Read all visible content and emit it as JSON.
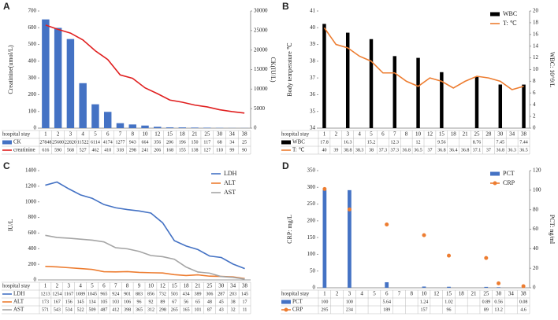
{
  "chart_data": [
    {
      "type": "combo",
      "label": "A",
      "x_label": "hospital stay",
      "ylabel": "Creatinine(umol/L)",
      "y2label": "CK(IU/L)",
      "categories": [
        "1",
        "2",
        "3",
        "4",
        "5",
        "6",
        "7",
        "8",
        "10",
        "12",
        "15",
        "18",
        "21",
        "25",
        "30",
        "34",
        "38"
      ],
      "ylim": [
        0,
        700
      ],
      "yticks": [
        0,
        100,
        200,
        300,
        400,
        500,
        600,
        700
      ],
      "y2lim": [
        0,
        30000
      ],
      "y2ticks": [
        0,
        5000,
        10000,
        15000,
        20000,
        25000,
        30000
      ],
      "series": [
        {
          "name": "CK",
          "type": "bar",
          "axis": "y2",
          "color": "#4472c4",
          "values": [
            27848,
            25680,
            22820,
            11522,
            6114,
            4174,
            1277,
            943,
            664,
            356,
            206,
            196,
            150,
            117,
            68,
            34,
            25
          ]
        },
        {
          "name": "creatinine",
          "type": "line",
          "color": "#e02020",
          "values": [
            616,
            590,
            568,
            527,
            462,
            410,
            318,
            298,
            241,
            206,
            168,
            155,
            138,
            127,
            110,
            99,
            90
          ]
        }
      ]
    },
    {
      "type": "combo",
      "label": "B",
      "x_label": "hospital stay",
      "ylabel": "Body temperature ℃",
      "y2label": "WBC: 10^9/L",
      "legend": "top-right",
      "categories": [
        "1",
        "2",
        "3",
        "4",
        "5",
        "6",
        "7",
        "8",
        "10",
        "12",
        "15",
        "18",
        "21",
        "25",
        "28",
        "30",
        "34",
        "38"
      ],
      "ylim": [
        34,
        41
      ],
      "yticks": [
        34,
        35,
        36,
        37,
        38,
        39,
        40,
        41
      ],
      "y2lim": [
        0,
        20
      ],
      "y2ticks": [
        0,
        2,
        4,
        6,
        8,
        10,
        12,
        14,
        16,
        18,
        20
      ],
      "series": [
        {
          "name": "WBC",
          "type": "bar",
          "axis": "y2",
          "color": "#000000",
          "values": [
            17.8,
            null,
            16.3,
            null,
            15.2,
            null,
            12.3,
            null,
            12,
            null,
            9.56,
            null,
            null,
            8.76,
            null,
            7.45,
            null,
            7.44
          ]
        },
        {
          "name": "T: ℃",
          "type": "line",
          "color": "#ed7d31",
          "values": [
            40,
            39,
            38.8,
            38.3,
            38,
            37.3,
            37.3,
            36.8,
            36.5,
            37,
            36.8,
            36.4,
            36.8,
            37.1,
            37,
            36.8,
            36.3,
            36.5
          ]
        }
      ]
    },
    {
      "type": "line",
      "label": "C",
      "x_label": "hospital stay",
      "ylabel": "IU/L",
      "legend": "top-right",
      "categories": [
        "1",
        "2",
        "3",
        "4",
        "5",
        "6",
        "7",
        "8",
        "9",
        "10",
        "12",
        "15",
        "18",
        "21",
        "25",
        "30",
        "34",
        "38"
      ],
      "ylim": [
        0,
        1400
      ],
      "yticks": [
        0,
        200,
        400,
        600,
        800,
        1000,
        1200,
        1400
      ],
      "series": [
        {
          "name": "LDH",
          "type": "line",
          "color": "#4472c4",
          "values": [
            1213,
            1254,
            1167,
            1089,
            1045,
            965,
            924,
            901,
            883,
            856,
            732,
            503,
            434,
            389,
            306,
            287,
            203,
            145
          ]
        },
        {
          "name": "ALT",
          "type": "line",
          "color": "#ed7d31",
          "values": [
            173,
            167,
            156,
            145,
            134,
            105,
            103,
            106,
            96,
            92,
            89,
            67,
            56,
            65,
            48,
            45,
            38,
            17
          ]
        },
        {
          "name": "AST",
          "type": "line",
          "color": "#a5a5a5",
          "values": [
            571,
            543,
            534,
            522,
            509,
            487,
            412,
            398,
            365,
            312,
            298,
            265,
            165,
            101,
            87,
            43,
            32,
            11
          ]
        }
      ]
    },
    {
      "type": "combo",
      "label": "D",
      "x_label": "hospital stay",
      "ylabel": "CRP: mg/L",
      "y2label": "PCT: ng/ml",
      "legend": "top-right",
      "categories": [
        "1",
        "2",
        "3",
        "4",
        "5",
        "6",
        "7",
        "8",
        "10",
        "12",
        "15",
        "18",
        "21",
        "25",
        "30",
        "34",
        "38"
      ],
      "ylim": [
        0,
        350
      ],
      "yticks": [
        0,
        50,
        100,
        150,
        200,
        250,
        300,
        350
      ],
      "y2lim": [
        0,
        120
      ],
      "y2ticks": [
        0,
        20,
        40,
        60,
        80,
        100,
        120
      ],
      "series": [
        {
          "name": "PCT",
          "type": "bar",
          "axis": "y2",
          "color": "#4472c4",
          "values": [
            100,
            null,
            100,
            null,
            null,
            5.64,
            null,
            null,
            1.24,
            null,
            1.02,
            null,
            null,
            0.89,
            0.56,
            null,
            0.08
          ]
        },
        {
          "name": "CRP",
          "type": "scatter",
          "color": "#ed7d31",
          "values": [
            295,
            null,
            234,
            null,
            null,
            189,
            null,
            null,
            157,
            null,
            96,
            null,
            null,
            89,
            13.2,
            null,
            4.6
          ]
        }
      ]
    }
  ]
}
